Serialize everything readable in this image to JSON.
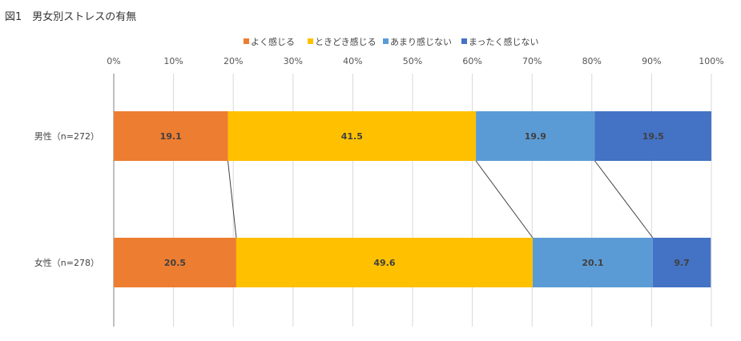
{
  "title": "図1　男女別ストレスの有無",
  "chart_data": {
    "type": "bar",
    "orientation": "horizontal",
    "stacked": "100%",
    "title": "図1　男女別ストレスの有無",
    "categories": [
      "男性（n=272）",
      "女性（n=278）"
    ],
    "series": [
      {
        "name": "よく感じる",
        "color": "#ED7D31",
        "values": [
          19.1,
          20.5
        ]
      },
      {
        "name": "ときどき感じる",
        "color": "#FFC000",
        "values": [
          41.5,
          49.6
        ]
      },
      {
        "name": "あまり感じない",
        "color": "#5B9BD5",
        "values": [
          19.9,
          20.1
        ]
      },
      {
        "name": "まったく感じない",
        "color": "#4472C4",
        "values": [
          19.5,
          9.7
        ]
      }
    ],
    "x_ticks": [
      "0%",
      "10%",
      "20%",
      "30%",
      "40%",
      "50%",
      "60%",
      "70%",
      "80%",
      "90%",
      "100%"
    ],
    "xlim": [
      0,
      100
    ],
    "grid": true,
    "legend_position": "top",
    "series_lines": true
  }
}
